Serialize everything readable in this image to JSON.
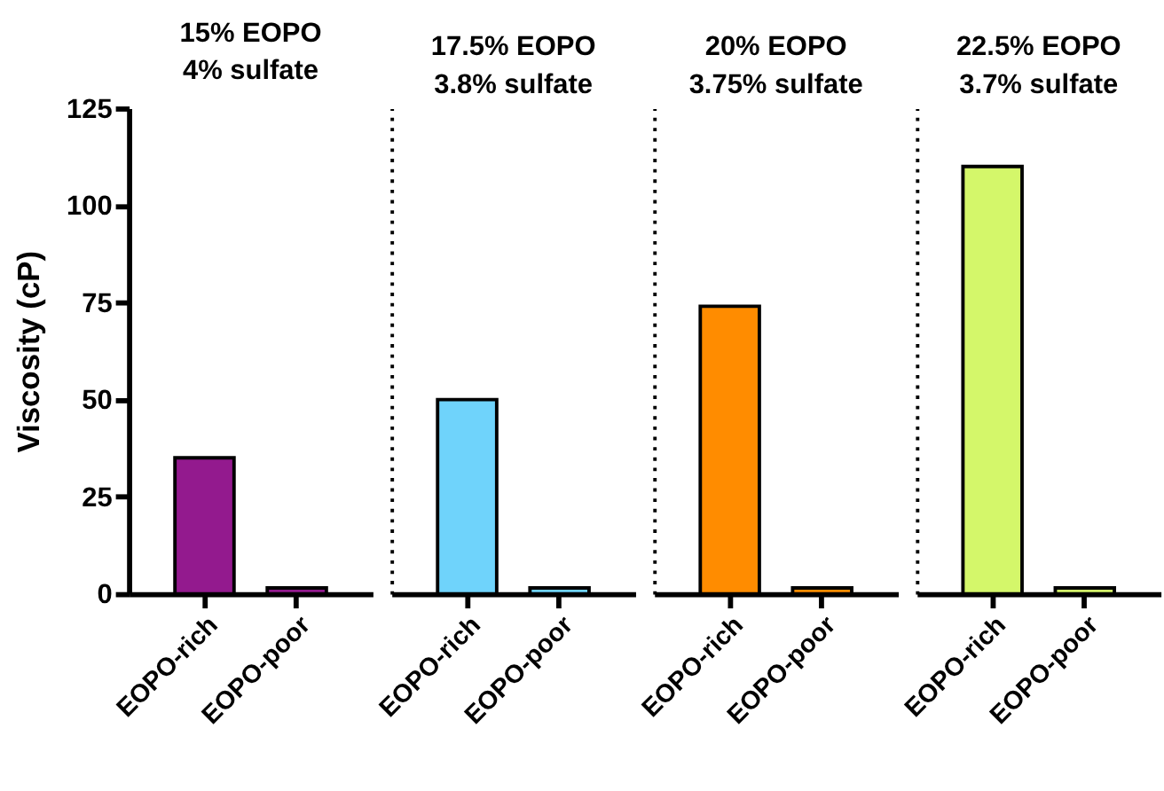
{
  "chart_data": [
    {
      "type": "bar",
      "title": "15% EOPO\n4% sulfate",
      "ylabel": "Viscosity (cP)",
      "categories": [
        "EOPO-rich",
        "EOPO-poor"
      ],
      "values": [
        35,
        1.5
      ],
      "colors": [
        "#931a8e",
        "#931a8e"
      ],
      "ylim": [
        0,
        125
      ],
      "yticks": [
        0,
        25,
        50,
        75,
        100,
        125
      ],
      "grid": false
    },
    {
      "type": "bar",
      "title": "17.5% EOPO\n3.8% sulfate",
      "categories": [
        "EOPO-rich",
        "EOPO-poor"
      ],
      "values": [
        50,
        1.5
      ],
      "colors": [
        "#6fd3fb",
        "#6fd3fb"
      ],
      "ylim": [
        0,
        125
      ],
      "yticks": [
        0,
        25,
        50,
        75,
        100,
        125
      ],
      "tick_labels": "x",
      "grid": false
    },
    {
      "type": "bar",
      "title": "20% EOPO\n3.75% sulfate",
      "categories": [
        "EOPO-rich",
        "EOPO-poor"
      ],
      "values": [
        74,
        1.5
      ],
      "colors": [
        "#ff8c00",
        "#ff8c00"
      ],
      "ylim": [
        0,
        125
      ],
      "yticks": [
        0,
        25,
        50,
        75,
        100,
        125
      ],
      "tick_labels": "x",
      "grid": false
    },
    {
      "type": "bar",
      "title": "22.5% EOPO\n3.7% sulfate",
      "categories": [
        "EOPO-rich",
        "EOPO-poor"
      ],
      "values": [
        110,
        1.5
      ],
      "colors": [
        "#d4f76a",
        "#d4f76a"
      ],
      "ylim": [
        0,
        125
      ],
      "yticks": [
        0,
        25,
        50,
        75,
        100,
        125
      ],
      "tick_labels": "x",
      "grid": false
    }
  ]
}
